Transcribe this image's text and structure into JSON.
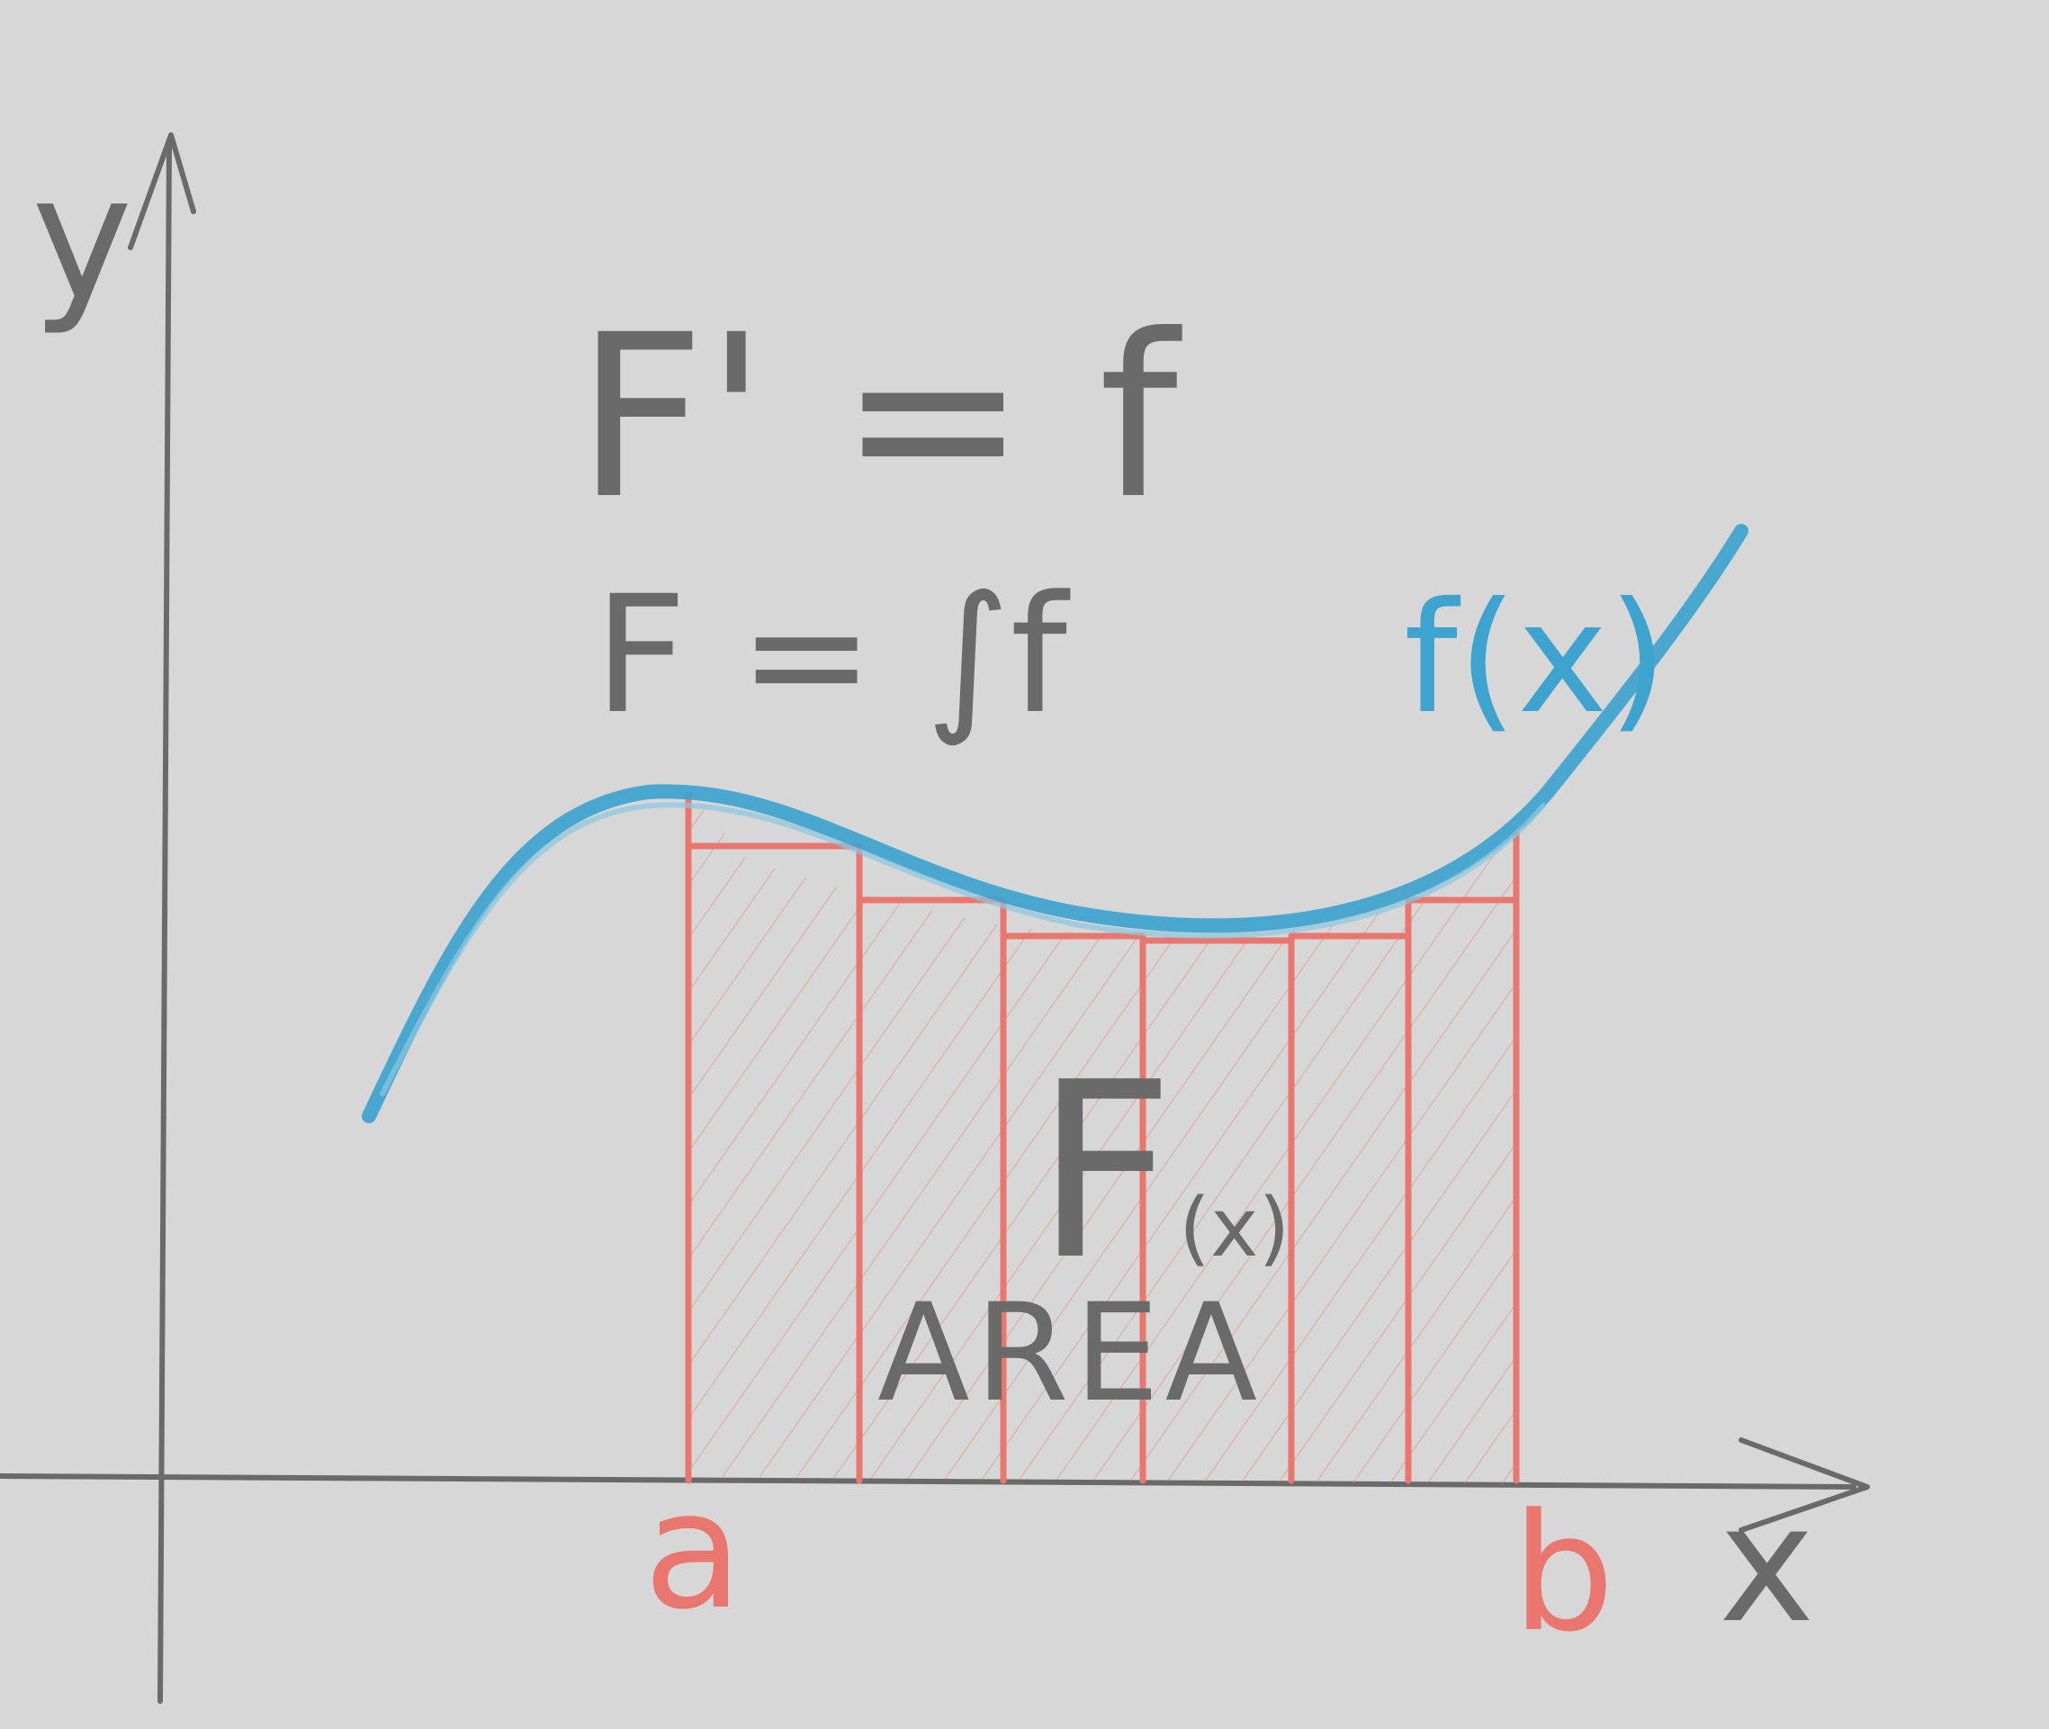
{
  "diagram": {
    "colors": {
      "paper": "#d6d7d6",
      "pencil": "#6a6a6a",
      "curve": "#3ea3cf",
      "bars": "#e9766f"
    },
    "axes": {
      "y_label": "y",
      "x_label": "x",
      "a_label": "a",
      "b_label": "b"
    },
    "formulas": {
      "line1": "F' = f",
      "line2": "F = ∫f"
    },
    "curve_label": "f(x)",
    "area_label": {
      "main": "F",
      "subscript": "(x)",
      "word": "AREA"
    },
    "rectangle_count": 6
  }
}
